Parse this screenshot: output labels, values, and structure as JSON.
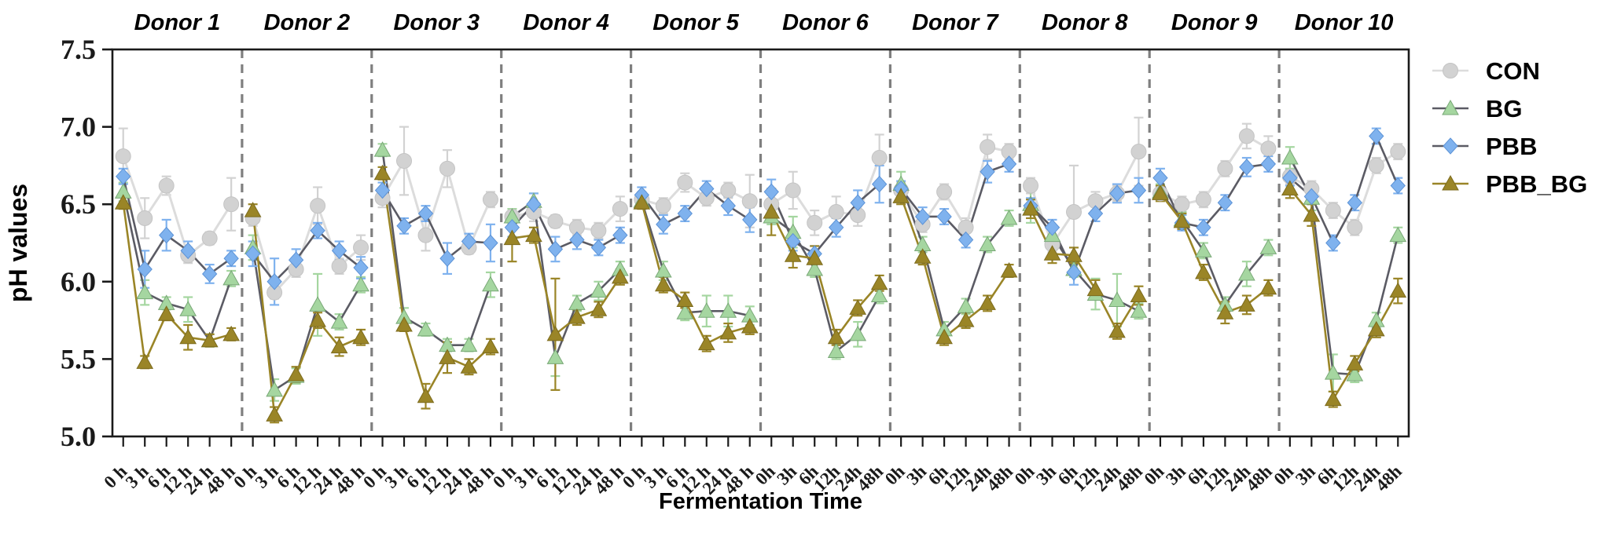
{
  "figure": {
    "background": "#ffffff",
    "frame_color": "#1a1a1a",
    "separator_color": "#7f7f7f"
  },
  "legend": {
    "items": [
      {
        "label": "CON",
        "marker": "circle",
        "marker_color": "#d2d2d2",
        "edge_color": "#c4c4c4",
        "line_color": "#dcdcdc"
      },
      {
        "label": "BG",
        "marker": "triangle",
        "marker_color": "#a5d6a0",
        "edge_color": "#79a877",
        "line_color": "#5b5b64"
      },
      {
        "label": "PBB",
        "marker": "diamond",
        "marker_color": "#7fb2ee",
        "edge_color": "#5d93d6",
        "line_color": "#5b5b64"
      },
      {
        "label": "PBB_BG",
        "marker": "triangle",
        "marker_color": "#9a8527",
        "edge_color": "#7c6b1d",
        "line_color": "#9a8527"
      }
    ]
  },
  "chart_data": {
    "type": "line",
    "title": "",
    "xlabel": "Fermentation Time",
    "ylabel": "pH values",
    "ylim": [
      5.0,
      7.5
    ],
    "yticks": [
      "7.5",
      "7.0",
      "6.5",
      "6.0",
      "5.5",
      "5.0"
    ],
    "ytick_values": [
      7.5,
      7.0,
      6.5,
      6.0,
      5.5,
      5.0
    ],
    "grid": false,
    "legend_position": "right-outside",
    "panels": [
      {
        "title": "Donor 1",
        "categories": [
          "0 h",
          "3 h",
          "6 h",
          "12 h",
          "24 h",
          "48 h"
        ],
        "series": [
          {
            "name": "CON",
            "values": [
              6.81,
              6.41,
              6.62,
              6.17,
              6.28,
              6.5
            ],
            "errors": [
              0.18,
              0.13,
              0.06,
              0.05,
              0.04,
              0.17
            ]
          },
          {
            "name": "BG",
            "values": [
              6.58,
              5.93,
              5.86,
              5.82,
              5.62,
              6.02
            ],
            "errors": [
              0.06,
              0.08,
              0.04,
              0.08,
              0.04,
              0.05
            ]
          },
          {
            "name": "PBB",
            "values": [
              6.68,
              6.08,
              6.3,
              6.2,
              6.05,
              6.15
            ],
            "errors": [
              0.05,
              0.12,
              0.1,
              0.06,
              0.06,
              0.05
            ]
          },
          {
            "name": "PBB_BG",
            "values": [
              6.51,
              5.48,
              5.79,
              5.64,
              5.62,
              5.66
            ],
            "errors": [
              0.04,
              0.04,
              0.04,
              0.08,
              0.04,
              0.04
            ]
          }
        ]
      },
      {
        "title": "Donor 2",
        "categories": [
          "0 h",
          "3 h",
          "6 h",
          "12 h",
          "24 h",
          "48 h"
        ],
        "series": [
          {
            "name": "CON",
            "values": [
              6.41,
              5.93,
              6.08,
              6.49,
              6.1,
              6.22
            ],
            "errors": [
              0.05,
              0.04,
              0.05,
              0.12,
              0.05,
              0.08
            ]
          },
          {
            "name": "BG",
            "values": [
              6.22,
              5.3,
              5.39,
              5.85,
              5.74,
              5.98
            ],
            "errors": [
              0.08,
              0.07,
              0.05,
              0.2,
              0.05,
              0.05
            ]
          },
          {
            "name": "PBB",
            "values": [
              6.18,
              6.0,
              6.14,
              6.33,
              6.2,
              6.09
            ],
            "errors": [
              0.08,
              0.15,
              0.07,
              0.05,
              0.06,
              0.07
            ]
          },
          {
            "name": "PBB_BG",
            "values": [
              6.46,
              5.14,
              5.4,
              5.75,
              5.58,
              5.64
            ],
            "errors": [
              0.04,
              0.05,
              0.05,
              0.05,
              0.06,
              0.05
            ]
          }
        ]
      },
      {
        "title": "Donor 3",
        "categories": [
          "0 h",
          "3 h",
          "6 h",
          "12 h",
          "24 h",
          "48 h"
        ],
        "series": [
          {
            "name": "CON",
            "values": [
              6.54,
              6.78,
              6.3,
              6.73,
              6.22,
              6.53
            ],
            "errors": [
              0.06,
              0.22,
              0.1,
              0.12,
              0.04,
              0.05
            ]
          },
          {
            "name": "BG",
            "values": [
              6.85,
              5.77,
              5.69,
              5.59,
              5.59,
              5.98
            ],
            "errors": [
              0.04,
              0.06,
              0.04,
              0.04,
              0.04,
              0.08
            ]
          },
          {
            "name": "PBB",
            "values": [
              6.59,
              6.36,
              6.44,
              6.15,
              6.26,
              6.25
            ],
            "errors": [
              0.05,
              0.05,
              0.05,
              0.1,
              0.05,
              0.12
            ]
          },
          {
            "name": "PBB_BG",
            "values": [
              6.7,
              5.72,
              5.26,
              5.51,
              5.45,
              5.58
            ],
            "errors": [
              0.04,
              0.04,
              0.08,
              0.1,
              0.05,
              0.05
            ]
          }
        ]
      },
      {
        "title": "Donor 4",
        "categories": [
          "0 h",
          "3 h",
          "6 h",
          "12 h",
          "24 h",
          "48 h"
        ],
        "series": [
          {
            "name": "CON",
            "values": [
              6.42,
              6.45,
              6.39,
              6.35,
              6.33,
              6.47
            ],
            "errors": [
              0.05,
              0.06,
              0.04,
              0.05,
              0.05,
              0.08
            ]
          },
          {
            "name": "BG",
            "values": [
              6.42,
              6.52,
              5.51,
              5.86,
              5.94,
              6.08
            ],
            "errors": [
              0.05,
              0.05,
              0.12,
              0.05,
              0.06,
              0.05
            ]
          },
          {
            "name": "PBB",
            "values": [
              6.35,
              6.5,
              6.21,
              6.27,
              6.22,
              6.3
            ],
            "errors": [
              0.06,
              0.07,
              0.08,
              0.06,
              0.05,
              0.05
            ]
          },
          {
            "name": "PBB_BG",
            "values": [
              6.28,
              6.3,
              5.66,
              5.77,
              5.82,
              6.03
            ],
            "errors": [
              0.15,
              0.05,
              0.36,
              0.05,
              0.05,
              0.05
            ]
          }
        ]
      },
      {
        "title": "Donor 5",
        "categories": [
          "0 h",
          "3 h",
          "6 h",
          "12 h",
          "24 h",
          "48 h"
        ],
        "series": [
          {
            "name": "CON",
            "values": [
              6.53,
              6.49,
              6.64,
              6.54,
              6.59,
              6.52
            ],
            "errors": [
              0.05,
              0.05,
              0.06,
              0.05,
              0.05,
              0.17
            ]
          },
          {
            "name": "BG",
            "values": [
              6.52,
              6.07,
              5.8,
              5.81,
              5.81,
              5.78
            ],
            "errors": [
              0.04,
              0.06,
              0.05,
              0.1,
              0.1,
              0.06
            ]
          },
          {
            "name": "PBB",
            "values": [
              6.56,
              6.37,
              6.44,
              6.6,
              6.49,
              6.4
            ],
            "errors": [
              0.05,
              0.06,
              0.05,
              0.05,
              0.06,
              0.08
            ]
          },
          {
            "name": "PBB_BG",
            "values": [
              6.51,
              5.98,
              5.88,
              5.6,
              5.67,
              5.71
            ],
            "errors": [
              0.04,
              0.05,
              0.05,
              0.05,
              0.06,
              0.05
            ]
          }
        ]
      },
      {
        "title": "Donor 6",
        "categories": [
          "0h",
          "3h",
          "6h",
          "12h",
          "24h",
          "48h"
        ],
        "series": [
          {
            "name": "CON",
            "values": [
              6.5,
              6.59,
              6.38,
              6.45,
              6.43,
              6.8
            ],
            "errors": [
              0.06,
              0.12,
              0.08,
              0.1,
              0.07,
              0.15
            ]
          },
          {
            "name": "BG",
            "values": [
              6.42,
              6.32,
              6.08,
              5.55,
              5.66,
              5.91
            ],
            "errors": [
              0.05,
              0.1,
              0.05,
              0.05,
              0.08,
              0.05
            ]
          },
          {
            "name": "PBB",
            "values": [
              6.58,
              6.26,
              6.18,
              6.35,
              6.51,
              6.63
            ],
            "errors": [
              0.08,
              0.06,
              0.05,
              0.06,
              0.08,
              0.12
            ]
          },
          {
            "name": "PBB_BG",
            "values": [
              6.45,
              6.17,
              6.15,
              5.64,
              5.83,
              5.99
            ],
            "errors": [
              0.15,
              0.08,
              0.08,
              0.05,
              0.05,
              0.05
            ]
          }
        ]
      },
      {
        "title": "Donor 7",
        "categories": [
          "0h",
          "3h",
          "6h",
          "12h",
          "24h",
          "48h"
        ],
        "series": [
          {
            "name": "CON",
            "values": [
              6.59,
              6.37,
              6.58,
              6.35,
              6.87,
              6.84
            ],
            "errors": [
              0.05,
              0.05,
              0.05,
              0.06,
              0.08,
              0.05
            ]
          },
          {
            "name": "BG",
            "values": [
              6.63,
              6.24,
              5.69,
              5.84,
              6.24,
              6.41
            ],
            "errors": [
              0.08,
              0.05,
              0.05,
              0.05,
              0.05,
              0.05
            ]
          },
          {
            "name": "PBB",
            "values": [
              6.6,
              6.42,
              6.42,
              6.27,
              6.71,
              6.76
            ],
            "errors": [
              0.05,
              0.06,
              0.05,
              0.05,
              0.07,
              0.05
            ]
          },
          {
            "name": "PBB_BG",
            "values": [
              6.55,
              6.16,
              5.64,
              5.75,
              5.86,
              6.07
            ],
            "errors": [
              0.05,
              0.05,
              0.05,
              0.05,
              0.05,
              0.04
            ]
          }
        ]
      },
      {
        "title": "Donor 8",
        "categories": [
          "0h",
          "3h",
          "6h",
          "12h",
          "24h",
          "48h"
        ],
        "series": [
          {
            "name": "CON",
            "values": [
              6.62,
              6.24,
              6.45,
              6.52,
              6.57,
              6.84
            ],
            "errors": [
              0.05,
              0.05,
              0.3,
              0.06,
              0.05,
              0.22
            ]
          },
          {
            "name": "BG",
            "values": [
              6.5,
              6.3,
              6.08,
              5.92,
              5.88,
              5.81
            ],
            "errors": [
              0.12,
              0.06,
              0.05,
              0.1,
              0.17,
              0.05
            ]
          },
          {
            "name": "PBB",
            "values": [
              6.49,
              6.35,
              6.06,
              6.44,
              6.57,
              6.59
            ],
            "errors": [
              0.05,
              0.05,
              0.08,
              0.05,
              0.06,
              0.08
            ]
          },
          {
            "name": "PBB_BG",
            "values": [
              6.47,
              6.18,
              6.17,
              5.95,
              5.68,
              5.91
            ],
            "errors": [
              0.06,
              0.06,
              0.05,
              0.06,
              0.05,
              0.06
            ]
          }
        ]
      },
      {
        "title": "Donor 9",
        "categories": [
          "0h",
          "3h",
          "6h",
          "12h",
          "24h",
          "48h"
        ],
        "series": [
          {
            "name": "CON",
            "values": [
              6.57,
              6.5,
              6.53,
              6.73,
              6.94,
              6.86
            ],
            "errors": [
              0.05,
              0.05,
              0.05,
              0.05,
              0.08,
              0.08
            ]
          },
          {
            "name": "BG",
            "values": [
              6.58,
              6.4,
              6.2,
              5.85,
              6.05,
              6.22
            ],
            "errors": [
              0.05,
              0.05,
              0.05,
              0.05,
              0.08,
              0.05
            ]
          },
          {
            "name": "PBB",
            "values": [
              6.67,
              6.38,
              6.35,
              6.51,
              6.74,
              6.76
            ],
            "errors": [
              0.06,
              0.05,
              0.05,
              0.05,
              0.06,
              0.05
            ]
          },
          {
            "name": "PBB_BG",
            "values": [
              6.57,
              6.39,
              6.06,
              5.8,
              5.85,
              5.96
            ],
            "errors": [
              0.05,
              0.05,
              0.05,
              0.07,
              0.06,
              0.05
            ]
          }
        ]
      },
      {
        "title": "Donor 10",
        "categories": [
          "0h",
          "3h",
          "6h",
          "12h",
          "24h",
          "48h"
        ],
        "series": [
          {
            "name": "CON",
            "values": [
              6.68,
              6.6,
              6.46,
              6.35,
              6.75,
              6.84
            ],
            "errors": [
              0.05,
              0.05,
              0.05,
              0.05,
              0.05,
              0.05
            ]
          },
          {
            "name": "BG",
            "values": [
              6.8,
              6.54,
              5.41,
              5.4,
              5.75,
              6.3
            ],
            "errors": [
              0.07,
              0.08,
              0.12,
              0.05,
              0.05,
              0.05
            ]
          },
          {
            "name": "PBB",
            "values": [
              6.67,
              6.55,
              6.25,
              6.51,
              6.94,
              6.62
            ],
            "errors": [
              0.05,
              0.05,
              0.05,
              0.05,
              0.05,
              0.05
            ]
          },
          {
            "name": "PBB_BG",
            "values": [
              6.6,
              6.43,
              5.24,
              5.47,
              5.69,
              5.94
            ],
            "errors": [
              0.06,
              0.07,
              0.05,
              0.05,
              0.05,
              0.08
            ]
          }
        ]
      }
    ]
  }
}
